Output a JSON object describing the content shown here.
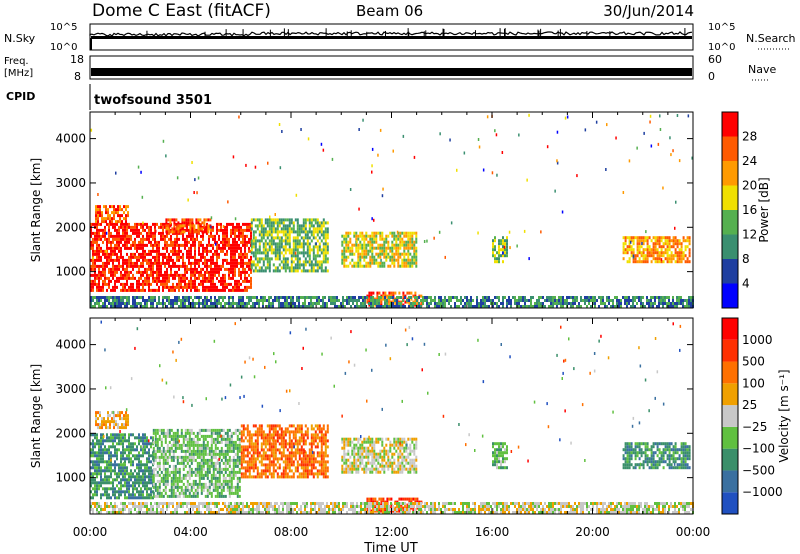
{
  "header": {
    "title": "Dome C East (fitACF)",
    "beam": "Beam 06",
    "date": "30/Jun/2014"
  },
  "status_panels": {
    "nsky": {
      "label": "N.Sky",
      "right_label": "N.Search",
      "ticks": [
        "10^5",
        "10^0"
      ]
    },
    "freq": {
      "label": "Freq.",
      "unit": "[MHz]",
      "ticks": [
        "18",
        "8"
      ],
      "right_ticks": [
        "60",
        "0"
      ],
      "right_label": "Nave"
    },
    "cpid": {
      "label": "CPID",
      "value": "twofsound 3501"
    }
  },
  "colors": {
    "power": [
      "#0000ff",
      "#1f3fa0",
      "#3a8f70",
      "#55b050",
      "#f0e000",
      "#ff9a00",
      "#ff5a00",
      "#ff0000"
    ],
    "velocity": [
      "#2050c0",
      "#3a70a0",
      "#3a8f6a",
      "#60c040",
      "#c8c8c8",
      "#f0a000",
      "#ff7000",
      "#ff3000",
      "#ff0000"
    ]
  },
  "chart_data": [
    {
      "type": "heatmap",
      "panel": "power",
      "ylabel": "Slant Range [km]",
      "x_tick_labels": [
        "00:00",
        "04:00",
        "08:00",
        "12:00",
        "16:00",
        "20:00",
        "00:00"
      ],
      "y_ticks": [
        1000,
        2000,
        3000,
        4000
      ],
      "ylim": [
        180,
        4600
      ],
      "xlim_hours": [
        0,
        24
      ],
      "colorbar": {
        "label": "Power [dB]",
        "tick_labels": [
          "4",
          "8",
          "12",
          "16",
          "20",
          "24",
          "28"
        ],
        "range": [
          0,
          32
        ]
      },
      "echo_regions": [
        {
          "t": [
            0.0,
            6.4
          ],
          "range_km": [
            550,
            2100
          ],
          "level": 26
        },
        {
          "t": [
            0.2,
            1.5
          ],
          "range_km": [
            2100,
            2500
          ],
          "level": 22
        },
        {
          "t": [
            3.0,
            4.8
          ],
          "range_km": [
            1900,
            2200
          ],
          "level": 22
        },
        {
          "t": [
            6.4,
            9.5
          ],
          "range_km": [
            1000,
            2200
          ],
          "level": 13
        },
        {
          "t": [
            10.0,
            13.0
          ],
          "range_km": [
            1100,
            1900
          ],
          "level": 14
        },
        {
          "t": [
            11.0,
            13.2
          ],
          "range_km": [
            250,
            550
          ],
          "level": 24
        },
        {
          "t": [
            16.0,
            16.6
          ],
          "range_km": [
            1200,
            1800
          ],
          "level": 12
        },
        {
          "t": [
            21.2,
            23.9
          ],
          "range_km": [
            1200,
            1800
          ],
          "level": 20
        },
        {
          "t": [
            0.0,
            24.0
          ],
          "range_km": [
            200,
            450
          ],
          "level": 8
        }
      ]
    },
    {
      "type": "heatmap",
      "panel": "velocity",
      "xlabel": "Time UT",
      "ylabel": "Slant Range [km]",
      "x_tick_labels": [
        "00:00",
        "04:00",
        "08:00",
        "12:00",
        "16:00",
        "20:00",
        "00:00"
      ],
      "y_ticks": [
        1000,
        2000,
        3000,
        4000
      ],
      "ylim": [
        180,
        4600
      ],
      "xlim_hours": [
        0,
        24
      ],
      "colorbar": {
        "label": "Velocity [m s⁻¹]",
        "tick_labels": [
          "1000",
          "500",
          "100",
          "25",
          "−25",
          "−100",
          "−500",
          "−1000"
        ]
      },
      "echo_regions": [
        {
          "t": [
            0.0,
            2.5
          ],
          "range_km": [
            550,
            2000
          ],
          "level": 2
        },
        {
          "t": [
            2.5,
            6.0
          ],
          "range_km": [
            600,
            2100
          ],
          "level": 3
        },
        {
          "t": [
            6.0,
            9.5
          ],
          "range_km": [
            1000,
            2200
          ],
          "level": 6
        },
        {
          "t": [
            0.2,
            1.5
          ],
          "range_km": [
            2100,
            2500
          ],
          "level": 5
        },
        {
          "t": [
            10.0,
            13.0
          ],
          "range_km": [
            1100,
            1900
          ],
          "level": 4
        },
        {
          "t": [
            11.0,
            13.2
          ],
          "range_km": [
            250,
            550
          ],
          "level": 7
        },
        {
          "t": [
            16.0,
            16.6
          ],
          "range_km": [
            1200,
            1800
          ],
          "level": 3
        },
        {
          "t": [
            21.2,
            23.9
          ],
          "range_km": [
            1200,
            1800
          ],
          "level": 2
        },
        {
          "t": [
            0.0,
            24.0
          ],
          "range_km": [
            200,
            450
          ],
          "level": 4
        }
      ]
    }
  ]
}
